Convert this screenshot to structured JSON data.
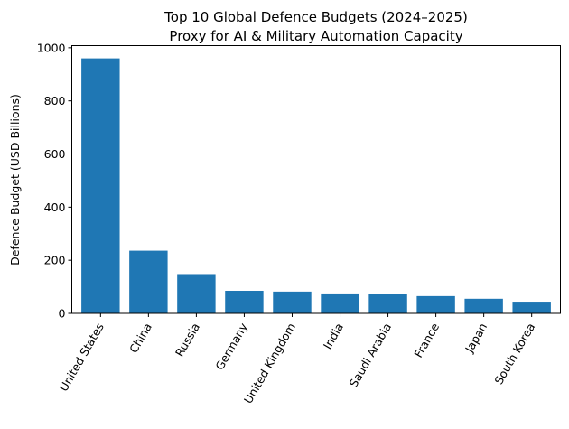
{
  "chart_data": {
    "type": "bar",
    "title": "Top 10 Global Defence Budgets (2024–2025)",
    "subtitle": "Proxy for AI & Military Automation Capacity",
    "xlabel": "",
    "ylabel": "Defence Budget (USD Billions)",
    "categories": [
      "United States",
      "China",
      "Russia",
      "Germany",
      "United Kingdom",
      "India",
      "Saudi Arabia",
      "France",
      "Japan",
      "South Korea"
    ],
    "values": [
      960,
      236,
      148,
      85,
      82,
      75,
      72,
      65,
      55,
      44
    ],
    "ylim": [
      0,
      1008
    ],
    "yticks": [
      0,
      200,
      400,
      600,
      800,
      1000
    ],
    "bar_color": "#1f77b4",
    "grid": false,
    "x_tick_rotation": 60
  }
}
